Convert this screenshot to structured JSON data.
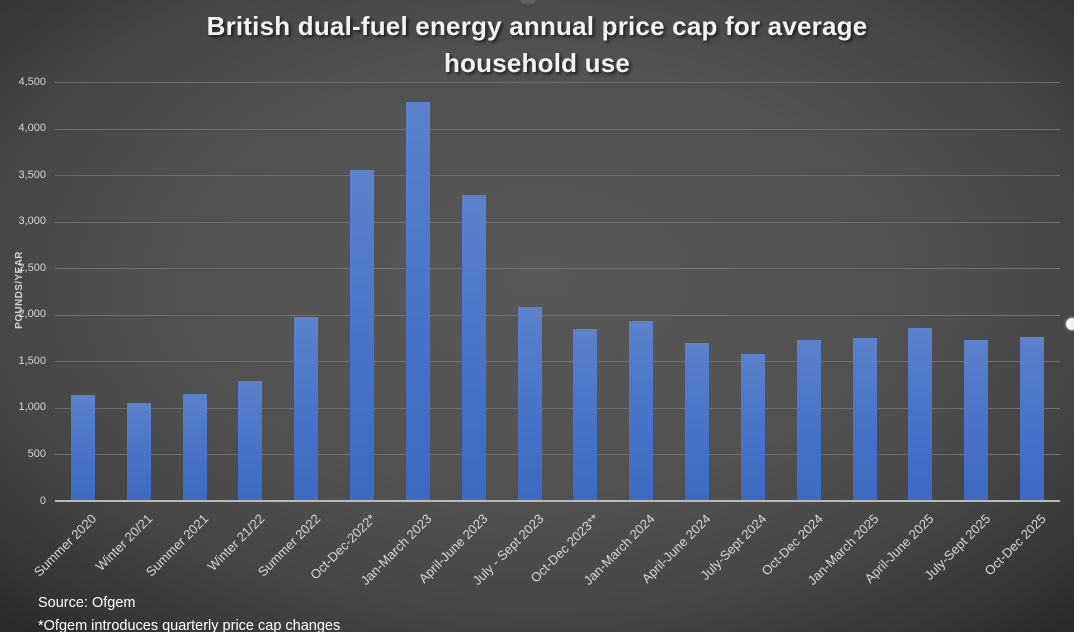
{
  "title": {
    "text": "British dual-fuel energy annual price cap for average household use",
    "lines": [
      "British dual-fuel energy annual price cap for average",
      "household use"
    ]
  },
  "footer": {
    "source": "Source: Ofgem",
    "note": "*Ofgem introduces quarterly price cap changes"
  },
  "colors": {
    "background_center": "#585858",
    "background_edge": "#2a2a2a",
    "bar_top": "#5d82cc",
    "bar_bottom": "#3e6ac2",
    "gridline": "#6e6e6e",
    "axis_line": "#b9b9b9",
    "text": "#d8d8d8",
    "title_text": "#f2f2f2"
  },
  "chart_data": {
    "type": "bar",
    "title": "British dual-fuel energy annual price cap for average household use",
    "xlabel": "",
    "ylabel": "POUNDS/YEAR",
    "ylim": [
      0,
      4500
    ],
    "ytick_step": 500,
    "ytick_labels": [
      "0",
      "500",
      "1,000",
      "1,500",
      "2,000",
      "2,500",
      "3,000",
      "3,500",
      "4,000",
      "4,500"
    ],
    "grid": true,
    "legend": "none",
    "categories": [
      "Summer 2020",
      "Winter 20/21",
      "Summer 2021",
      "Winter 21/22",
      "Summer 2022",
      "Oct-Dec-2022*",
      "Jan-March 2023",
      "April-June 2023",
      "July - Sept 2023",
      "Oct-Dec 2023**",
      "Jan-March 2024",
      "April-June 2024",
      "July-Sept 2024",
      "Oct-Dec 2024",
      "Jan-March 2025",
      "April-June 2025",
      "July-Sept 2025",
      "Oct-Dec 2025"
    ],
    "values": [
      1126,
      1042,
      1138,
      1277,
      1971,
      3549,
      4279,
      3280,
      2074,
      1834,
      1928,
      1690,
      1568,
      1717,
      1738,
      1849,
      1720,
      1755
    ]
  }
}
